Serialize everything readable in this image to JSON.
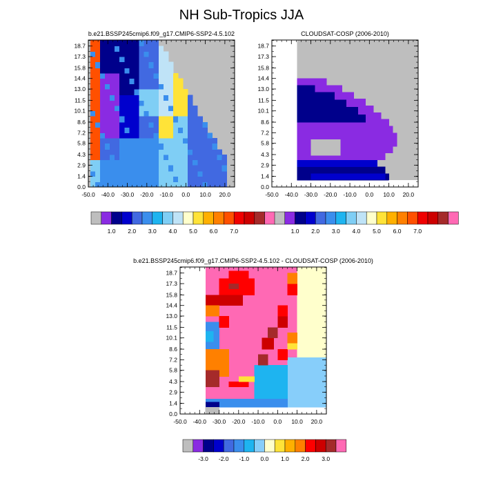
{
  "figure_title": "NH Sub-Tropics JJA",
  "colors": {
    "missing": "#BEBEBE",
    "cnt_palette": [
      "#8A2BE2",
      "#00008B",
      "#0000CD",
      "#4169E1",
      "#3A8EED",
      "#1EB4F0",
      "#7FCEF5",
      "#BFE3F7",
      "#FFFFCC",
      "#FFE338",
      "#FFB000",
      "#FF8000",
      "#FF5000",
      "#F00000",
      "#CD0000",
      "#A52A2A",
      "#FF69B4"
    ],
    "diff_palette": [
      "#8A2BE2",
      "#00008B",
      "#0000CD",
      "#4169E1",
      "#3A8EED",
      "#1EB4F0",
      "#87CEFA",
      "#FFFFCC",
      "#FFE338",
      "#FFB000",
      "#FF8000",
      "#FF0000",
      "#CD0000",
      "#A52A2A",
      "#FF69B4"
    ]
  },
  "panels": [
    {
      "title": "b.e21.BSSP245cmip6.f09_g17.CMIP6-SSP2-4.5.102"
    },
    {
      "title": "CLOUDSAT-COSP (2006-2010)"
    },
    {
      "title": "b.e21.BSSP245cmip6.f09_g17.CMIP6-SSP2-4.5.102 - CLOUDSAT-COSP (2006-2010)"
    }
  ],
  "colorbars": {
    "counts": [
      "1.0",
      "2.0",
      "3.0",
      "4.0",
      "5.0",
      "6.0",
      "7.0"
    ],
    "diff": [
      "-3.0",
      "-2.0",
      "-1.0",
      "0.0",
      "1.0",
      "2.0",
      "3.0"
    ]
  },
  "chart_data": [
    {
      "type": "heatmap",
      "title": "b.e21.BSSP245cmip6.f09_g17.CMIP6-SSP2-4.5.102",
      "x_ticks": [
        "-50.0",
        "-40.0",
        "-30.0",
        "-20.0",
        "-10.0",
        "0.0",
        "10.0",
        "20.0"
      ],
      "y_ticks": [
        "0.0",
        "1.4",
        "2.9",
        "4.3",
        "5.8",
        "7.2",
        "8.6",
        "10.1",
        "11.5",
        "13.0",
        "14.4",
        "15.8",
        "17.3",
        "18.7"
      ],
      "x_range": [
        -50,
        25
      ],
      "y_range": [
        0,
        19.5
      ],
      "grid_y_edges": [
        0,
        0.7,
        1.4,
        2.1,
        2.9,
        3.6,
        4.3,
        5.0,
        5.8,
        6.5,
        7.2,
        7.9,
        8.6,
        9.4,
        10.1,
        10.8,
        11.5,
        12.2,
        13.0,
        13.7,
        14.4,
        15.1,
        15.8,
        16.6,
        17.3,
        18.0,
        18.7,
        19.5
      ],
      "grid_x_start": -49,
      "grid_x_step": 2.5,
      "grid": [
        "00000000006611111111111102224",
        "6000000000000611112222204224",
        "600000000005678888888882336",
        "000000000006566787767882347",
        "000000000006567678877788236",
        "000000000006567777776788236",
        "00000000000666787878888224",
        "00000000000666787777888224",
        "0000000000066587999998225",
        "0000000000066588999998225",
        "000000000006658799899922",
        "000000000006658799899922",
        "0000000000066587667799",
        "0000000000066587667799",
        "00000000000666676678",
        "00000000000666676678",
        "000000000006667667",
        "000000000006667666",
        "0000000000066677",
        "0000000000066676",
        "00000000000667",
        "00000000000667",
        "000000000006",
        "000000000006",
        "0000000000",
        "0000000000",
        "00000000"
      ],
      "note_symbols": "0=missing, 1..9 = colour levels"
    },
    {
      "type": "heatmap",
      "title": "CLOUDSAT-COSP (2006-2010)",
      "x_ticks": [
        "-50.0",
        "-40.0",
        "-30.0",
        "-20.0",
        "-10.0",
        "0.0",
        "10.0",
        "20.0"
      ],
      "y_ticks": [
        "0.0",
        "1.4",
        "2.9",
        "4.3",
        "5.8",
        "7.2",
        "8.6",
        "10.1",
        "11.5",
        "13.0",
        "14.4",
        "15.8",
        "17.3",
        "18.7"
      ],
      "x_range": [
        -50,
        25
      ],
      "y_range": [
        0,
        19.5
      ]
    },
    {
      "type": "heatmap",
      "title": "b.e21.BSSP245cmip6.f09_g17.CMIP6-SSP2-4.5.102 - CLOUDSAT-COSP (2006-2010)",
      "x_ticks": [
        "-50.0",
        "-40.0",
        "-30.0",
        "-20.0",
        "-10.0",
        "0.0",
        "10.0",
        "20.0"
      ],
      "y_ticks": [
        "0.0",
        "1.4",
        "2.9",
        "4.3",
        "5.8",
        "7.2",
        "8.6",
        "10.1",
        "11.5",
        "13.0",
        "14.4",
        "15.8",
        "17.3",
        "18.7"
      ],
      "x_range": [
        -50,
        25
      ],
      "y_range": [
        0,
        19.5
      ]
    }
  ]
}
